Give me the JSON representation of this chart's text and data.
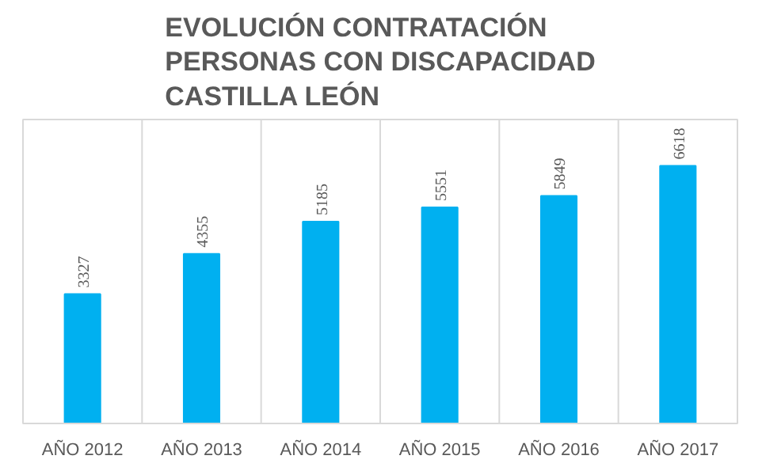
{
  "chart_data": {
    "type": "bar",
    "title": "EVOLUCIÓN CONTRATACIÓN\nPERSONAS CON DISCAPACIDAD\nCASTILLA LEÓN",
    "categories": [
      "AÑO 2012",
      "AÑO 2013",
      "AÑO 2014",
      "AÑO 2015",
      "AÑO 2016",
      "AÑO 2017"
    ],
    "values": [
      3327,
      4355,
      5185,
      5551,
      5849,
      6618
    ],
    "color": "#00b0f0",
    "data_labels": true,
    "grid": "x"
  }
}
